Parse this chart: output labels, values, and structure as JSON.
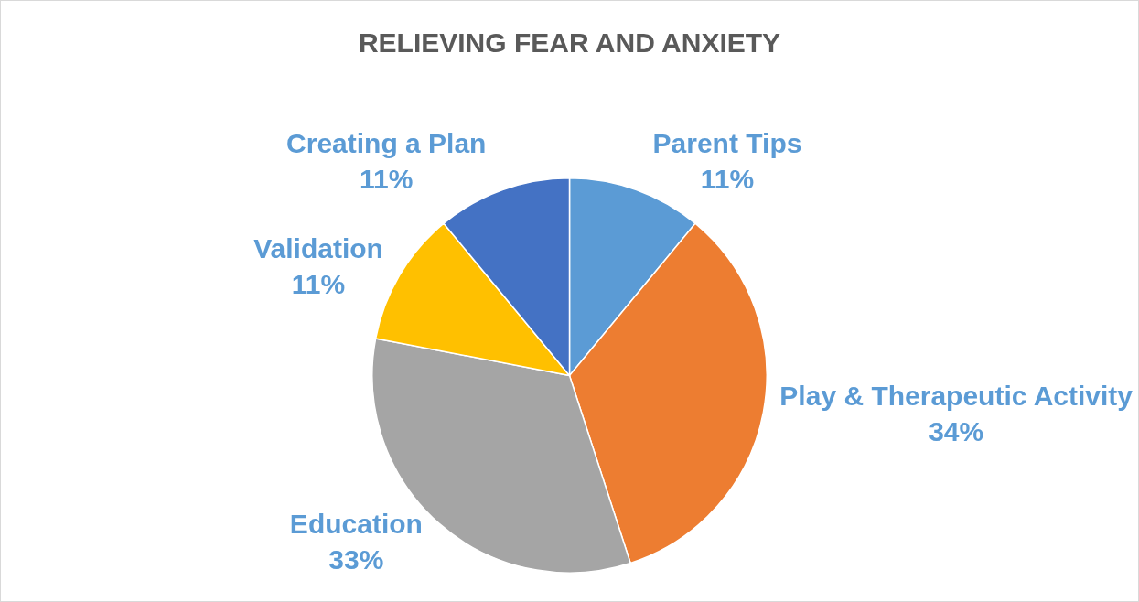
{
  "chart_data": {
    "type": "pie",
    "title": "RELIEVING FEAR AND ANXIETY",
    "categories": [
      "Parent Tips",
      "Play & Therapeutic Activity",
      "Education",
      "Validation",
      "Creating a Plan"
    ],
    "values": [
      11,
      34,
      33,
      11,
      11
    ],
    "value_labels": [
      "11%",
      "34%",
      "33%",
      "11%",
      "11%"
    ],
    "colors": [
      "#5b9bd5",
      "#ed7d31",
      "#a5a5a5",
      "#ffc000",
      "#4472c4"
    ],
    "legend": false
  }
}
